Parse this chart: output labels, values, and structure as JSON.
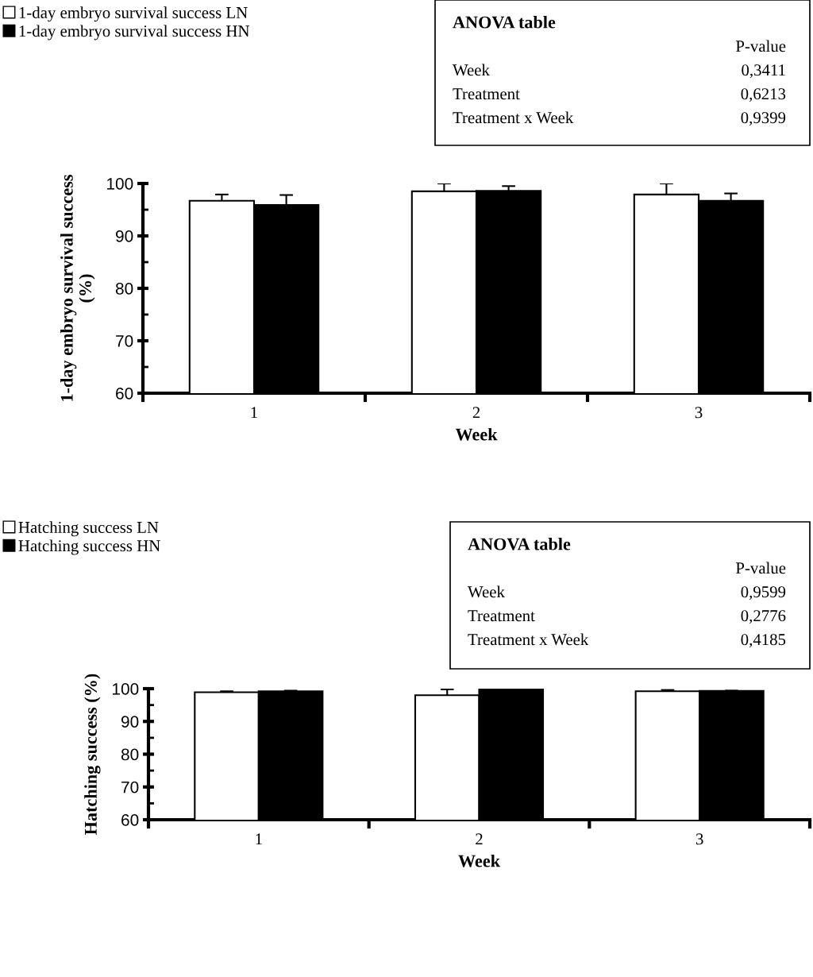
{
  "chart_data": [
    {
      "type": "bar",
      "xlabel": "Week",
      "ylabel": "1-day embryo survival success\n(%)",
      "categories": [
        "1",
        "2",
        "3"
      ],
      "series": [
        {
          "name": "1-day embryo survival success LN",
          "color": "#ffffff",
          "values": [
            96.7,
            98.5,
            97.9
          ],
          "errors": [
            1.2,
            1.5,
            2.1
          ]
        },
        {
          "name": "1-day embryo survival success HN",
          "color": "#000000",
          "values": [
            95.9,
            98.6,
            96.7
          ],
          "errors": [
            1.9,
            0.9,
            1.4
          ]
        }
      ],
      "ylim": [
        60,
        100
      ],
      "yticks": [
        60,
        70,
        80,
        90,
        100
      ],
      "grid": false,
      "legend": "top left",
      "annotations": [
        "ANOVA table",
        "P-value",
        "Week",
        "0,3411",
        "Treatment",
        "0,6213",
        "Treatment x Week",
        "0,9399"
      ]
    },
    {
      "type": "bar",
      "xlabel": "Week",
      "ylabel": "Hatching success (%)",
      "categories": [
        "1",
        "2",
        "3"
      ],
      "series": [
        {
          "name": "Hatching success LN",
          "color": "#ffffff",
          "values": [
            98.9,
            98.0,
            99.2
          ],
          "errors": [
            0.3,
            1.8,
            0.4
          ]
        },
        {
          "name": "Hatching success HN",
          "color": "#000000",
          "values": [
            99.2,
            100,
            99.3
          ],
          "errors": [
            0.2,
            0,
            0.1
          ]
        }
      ],
      "ylim": [
        60,
        100
      ],
      "yticks": [
        60,
        70,
        80,
        90,
        100
      ],
      "grid": false,
      "legend": "top left",
      "annotations": [
        "ANOVA table",
        "P-value",
        "Week",
        "0,9599",
        "Treatment",
        "0,2776",
        "Treatment x Week",
        "0,4185"
      ]
    }
  ]
}
